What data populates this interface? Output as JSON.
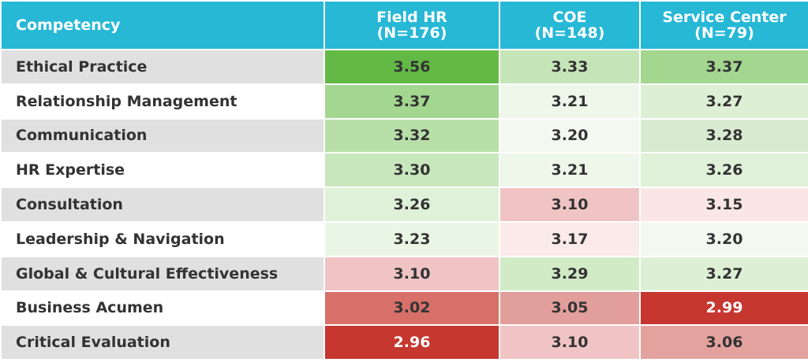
{
  "header": {
    "competency": "Competency",
    "columns": [
      {
        "name": "Field HR",
        "n": "(N=176)"
      },
      {
        "name": "COE",
        "n": "(N=148)"
      },
      {
        "name": "Service Center",
        "n": "(N=79)"
      }
    ]
  },
  "table": {
    "rows": [
      {
        "label": "Ethical Practice",
        "values": [
          "3.56",
          "3.33",
          "3.37"
        ],
        "colors": [
          "#62b946",
          "#c5e5b9",
          "#a3d68f"
        ]
      },
      {
        "label": "Relationship Management",
        "values": [
          "3.37",
          "3.21",
          "3.27"
        ],
        "colors": [
          "#a3d68f",
          "#eef7ea",
          "#ddf0d5"
        ]
      },
      {
        "label": "Communication",
        "values": [
          "3.32",
          "3.20",
          "3.28"
        ],
        "colors": [
          "#b8dfa8",
          "#f3f9f0",
          "#d8ebd0"
        ]
      },
      {
        "label": "HR Expertise",
        "values": [
          "3.30",
          "3.21",
          "3.26"
        ],
        "colors": [
          "#c9e7bd",
          "#eef7ea",
          "#dff1d8"
        ]
      },
      {
        "label": "Consultation",
        "values": [
          "3.26",
          "3.10",
          "3.15"
        ],
        "colors": [
          "#dff1d8",
          "#f0c4c4",
          "#fbe6e6"
        ]
      },
      {
        "label": "Leadership & Navigation",
        "values": [
          "3.23",
          "3.17",
          "3.20"
        ],
        "colors": [
          "#eaf6e5",
          "#fbeaea",
          "#f3f9f0"
        ]
      },
      {
        "label": "Global & Cultural Effectiveness",
        "values": [
          "3.10",
          "3.29",
          "3.27"
        ],
        "colors": [
          "#f0c4c4",
          "#d2ebc7",
          "#ddf0d5"
        ]
      },
      {
        "label": "Business Acumen",
        "values": [
          "3.02",
          "3.05",
          "2.99"
        ],
        "colors": [
          "#d77069",
          "#e29e9a",
          "#c5372f"
        ]
      },
      {
        "label": "Critical Evaluation",
        "values": [
          "2.96",
          "3.10",
          "3.06"
        ],
        "colors": [
          "#c5372f",
          "#f0c4c4",
          "#e3a29e"
        ]
      }
    ]
  }
}
